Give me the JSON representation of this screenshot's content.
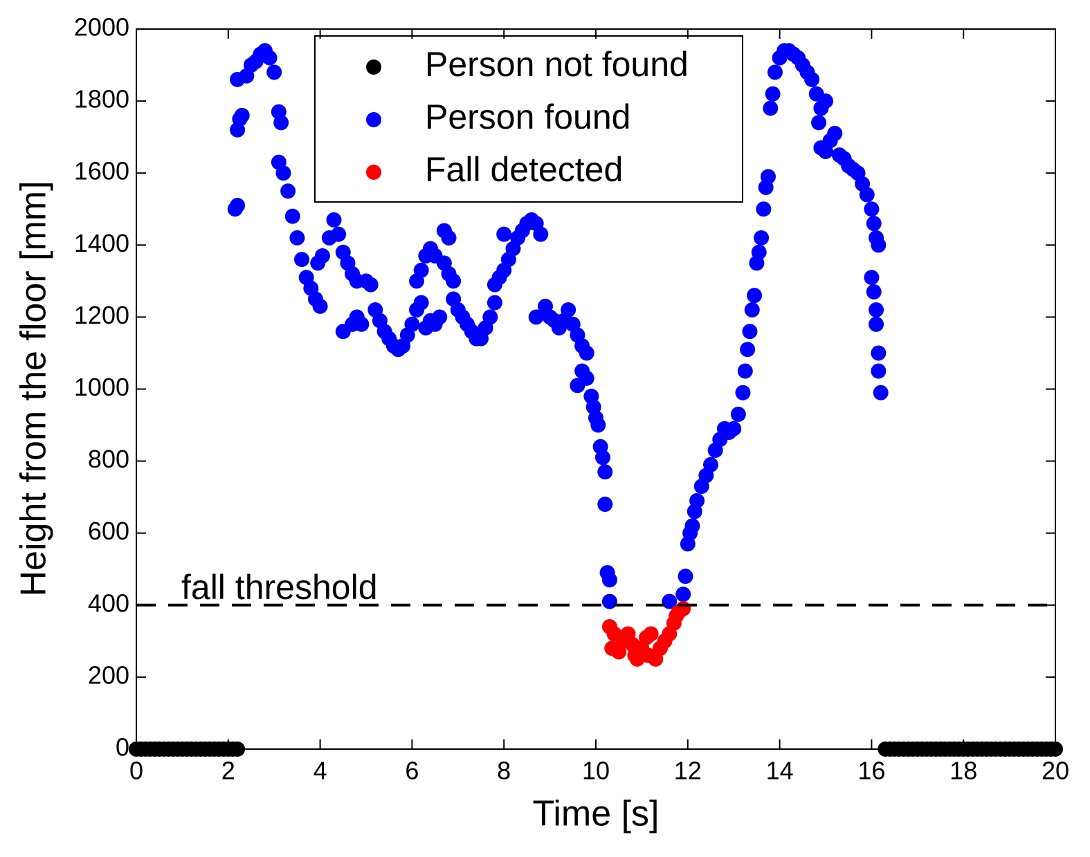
{
  "chart_data": {
    "type": "scatter",
    "xlabel": "Time [s]",
    "ylabel": "Height from the floor [mm]",
    "xlim": [
      0,
      20
    ],
    "ylim": [
      0,
      2000
    ],
    "xticks": [
      0,
      2,
      4,
      6,
      8,
      10,
      12,
      14,
      16,
      18,
      20
    ],
    "yticks": [
      0,
      200,
      400,
      600,
      800,
      1000,
      1200,
      1400,
      1600,
      1800,
      2000
    ],
    "grid": false,
    "legend": "top",
    "threshold": {
      "value": 400,
      "label": "fall threshold"
    },
    "series": [
      {
        "name": "Person not found",
        "color": "#000000",
        "x": [
          0,
          0.1,
          0.2,
          0.3,
          0.4,
          0.5,
          0.6,
          0.7,
          0.8,
          0.9,
          1,
          1.1,
          1.2,
          1.3,
          1.4,
          1.5,
          1.6,
          1.7,
          1.8,
          1.9,
          2,
          2.1,
          2.2,
          16.3,
          16.4,
          16.5,
          16.6,
          16.7,
          16.8,
          16.9,
          17,
          17.1,
          17.2,
          17.3,
          17.4,
          17.5,
          17.6,
          17.7,
          17.8,
          17.9,
          18,
          18.1,
          18.2,
          18.3,
          18.4,
          18.5,
          18.6,
          18.7,
          18.8,
          18.9,
          19,
          19.1,
          19.2,
          19.3,
          19.4,
          19.5,
          19.6,
          19.7,
          19.8,
          19.9,
          20
        ],
        "values": [
          0,
          0,
          0,
          0,
          0,
          0,
          0,
          0,
          0,
          0,
          0,
          0,
          0,
          0,
          0,
          0,
          0,
          0,
          0,
          0,
          0,
          0,
          0,
          0,
          0,
          0,
          0,
          0,
          0,
          0,
          0,
          0,
          0,
          0,
          0,
          0,
          0,
          0,
          0,
          0,
          0,
          0,
          0,
          0,
          0,
          0,
          0,
          0,
          0,
          0,
          0,
          0,
          0,
          0,
          0,
          0,
          0,
          0,
          0,
          0,
          0
        ]
      },
      {
        "name": "Person found",
        "color": "#0000ff",
        "x": [
          2.15,
          2.2,
          2.2,
          2.25,
          2.3,
          2.2,
          2.4,
          2.5,
          2.6,
          2.7,
          2.8,
          2.9,
          3.0,
          3.1,
          3.15,
          3.1,
          3.2,
          3.3,
          3.4,
          3.5,
          3.6,
          3.7,
          3.8,
          3.9,
          4.0,
          3.95,
          4.05,
          4.2,
          4.3,
          4.4,
          4.5,
          4.6,
          4.7,
          4.8,
          5.0,
          5.1,
          4.5,
          4.7,
          4.8,
          4.9,
          5.2,
          5.3,
          5.4,
          5.5,
          5.6,
          5.7,
          5.8,
          5.9,
          6.0,
          6.1,
          6.2,
          6.1,
          6.2,
          6.3,
          6.4,
          6.5,
          6.3,
          6.4,
          6.5,
          6.6,
          6.7,
          6.8,
          6.9,
          6.7,
          6.8,
          6.9,
          7.0,
          7.1,
          7.2,
          7.3,
          7.4,
          7.5,
          7.6,
          7.7,
          7.8,
          7.8,
          7.9,
          8.0,
          8.1,
          8.2,
          8.3,
          8.0,
          8.4,
          8.5,
          8.6,
          8.7,
          8.8,
          8.7,
          8.9,
          9.0,
          9.1,
          9.2,
          9.3,
          9.4,
          9.5,
          9.6,
          9.7,
          9.8,
          9.7,
          9.8,
          9.6,
          9.9,
          10.0,
          9.95,
          10.05,
          10.1,
          10.15,
          10.2,
          10.2,
          10.25,
          10.3,
          10.3,
          11.6,
          11.9,
          11.95,
          12.0,
          12.05,
          12.1,
          12.15,
          12.2,
          12.3,
          12.4,
          12.5,
          12.6,
          12.7,
          12.8,
          12.9,
          13.0,
          13.1,
          13.2,
          13.25,
          13.3,
          13.35,
          13.4,
          13.45,
          13.5,
          13.55,
          13.6,
          13.65,
          13.7,
          13.75,
          13.8,
          13.85,
          13.9,
          14.0,
          14.1,
          14.2,
          14.3,
          14.4,
          14.5,
          14.6,
          14.7,
          14.8,
          14.9,
          14.85,
          15.0,
          14.9,
          15.0,
          15.1,
          15.2,
          15.3,
          15.4,
          15.5,
          15.6,
          15.7,
          15.8,
          15.9,
          16.0,
          16.05,
          16.1,
          16.15,
          16.0,
          16.05,
          16.1,
          16.1,
          16.15,
          16.15,
          16.2
        ],
        "values": [
          1500,
          1510,
          1720,
          1750,
          1760,
          1860,
          1870,
          1900,
          1910,
          1930,
          1940,
          1920,
          1880,
          1770,
          1740,
          1630,
          1600,
          1550,
          1480,
          1420,
          1360,
          1310,
          1280,
          1250,
          1230,
          1350,
          1370,
          1420,
          1470,
          1430,
          1380,
          1350,
          1320,
          1300,
          1300,
          1290,
          1160,
          1180,
          1200,
          1180,
          1220,
          1190,
          1160,
          1140,
          1120,
          1110,
          1120,
          1150,
          1180,
          1220,
          1240,
          1300,
          1330,
          1370,
          1390,
          1370,
          1170,
          1190,
          1180,
          1200,
          1350,
          1320,
          1300,
          1440,
          1420,
          1250,
          1220,
          1200,
          1180,
          1160,
          1140,
          1140,
          1170,
          1200,
          1240,
          1290,
          1310,
          1330,
          1360,
          1390,
          1420,
          1430,
          1440,
          1460,
          1470,
          1460,
          1430,
          1200,
          1230,
          1200,
          1190,
          1170,
          1190,
          1220,
          1180,
          1150,
          1120,
          1100,
          1050,
          1030,
          1010,
          980,
          920,
          950,
          900,
          840,
          810,
          770,
          680,
          490,
          470,
          410,
          410,
          430,
          480,
          570,
          600,
          620,
          660,
          690,
          730,
          760,
          790,
          830,
          860,
          890,
          880,
          890,
          930,
          990,
          1050,
          1110,
          1160,
          1220,
          1260,
          1350,
          1380,
          1420,
          1500,
          1560,
          1590,
          1780,
          1820,
          1880,
          1920,
          1940,
          1940,
          1930,
          1920,
          1900,
          1880,
          1860,
          1820,
          1780,
          1740,
          1800,
          1670,
          1660,
          1690,
          1710,
          1650,
          1640,
          1620,
          1610,
          1600,
          1570,
          1540,
          1500,
          1460,
          1420,
          1400,
          1310,
          1270,
          1220,
          1180,
          1100,
          1050,
          990
        ]
      },
      {
        "name": "Fall detected",
        "color": "#ff0000",
        "x": [
          10.3,
          10.4,
          10.35,
          10.5,
          10.6,
          10.7,
          10.8,
          10.85,
          10.9,
          11.0,
          11.1,
          11.2,
          11.15,
          11.3,
          11.4,
          11.5,
          11.6,
          11.7,
          11.8,
          11.9,
          11.75
        ],
        "values": [
          340,
          320,
          280,
          270,
          300,
          320,
          290,
          260,
          250,
          280,
          310,
          320,
          260,
          250,
          280,
          300,
          320,
          350,
          380,
          390,
          370
        ]
      }
    ]
  }
}
